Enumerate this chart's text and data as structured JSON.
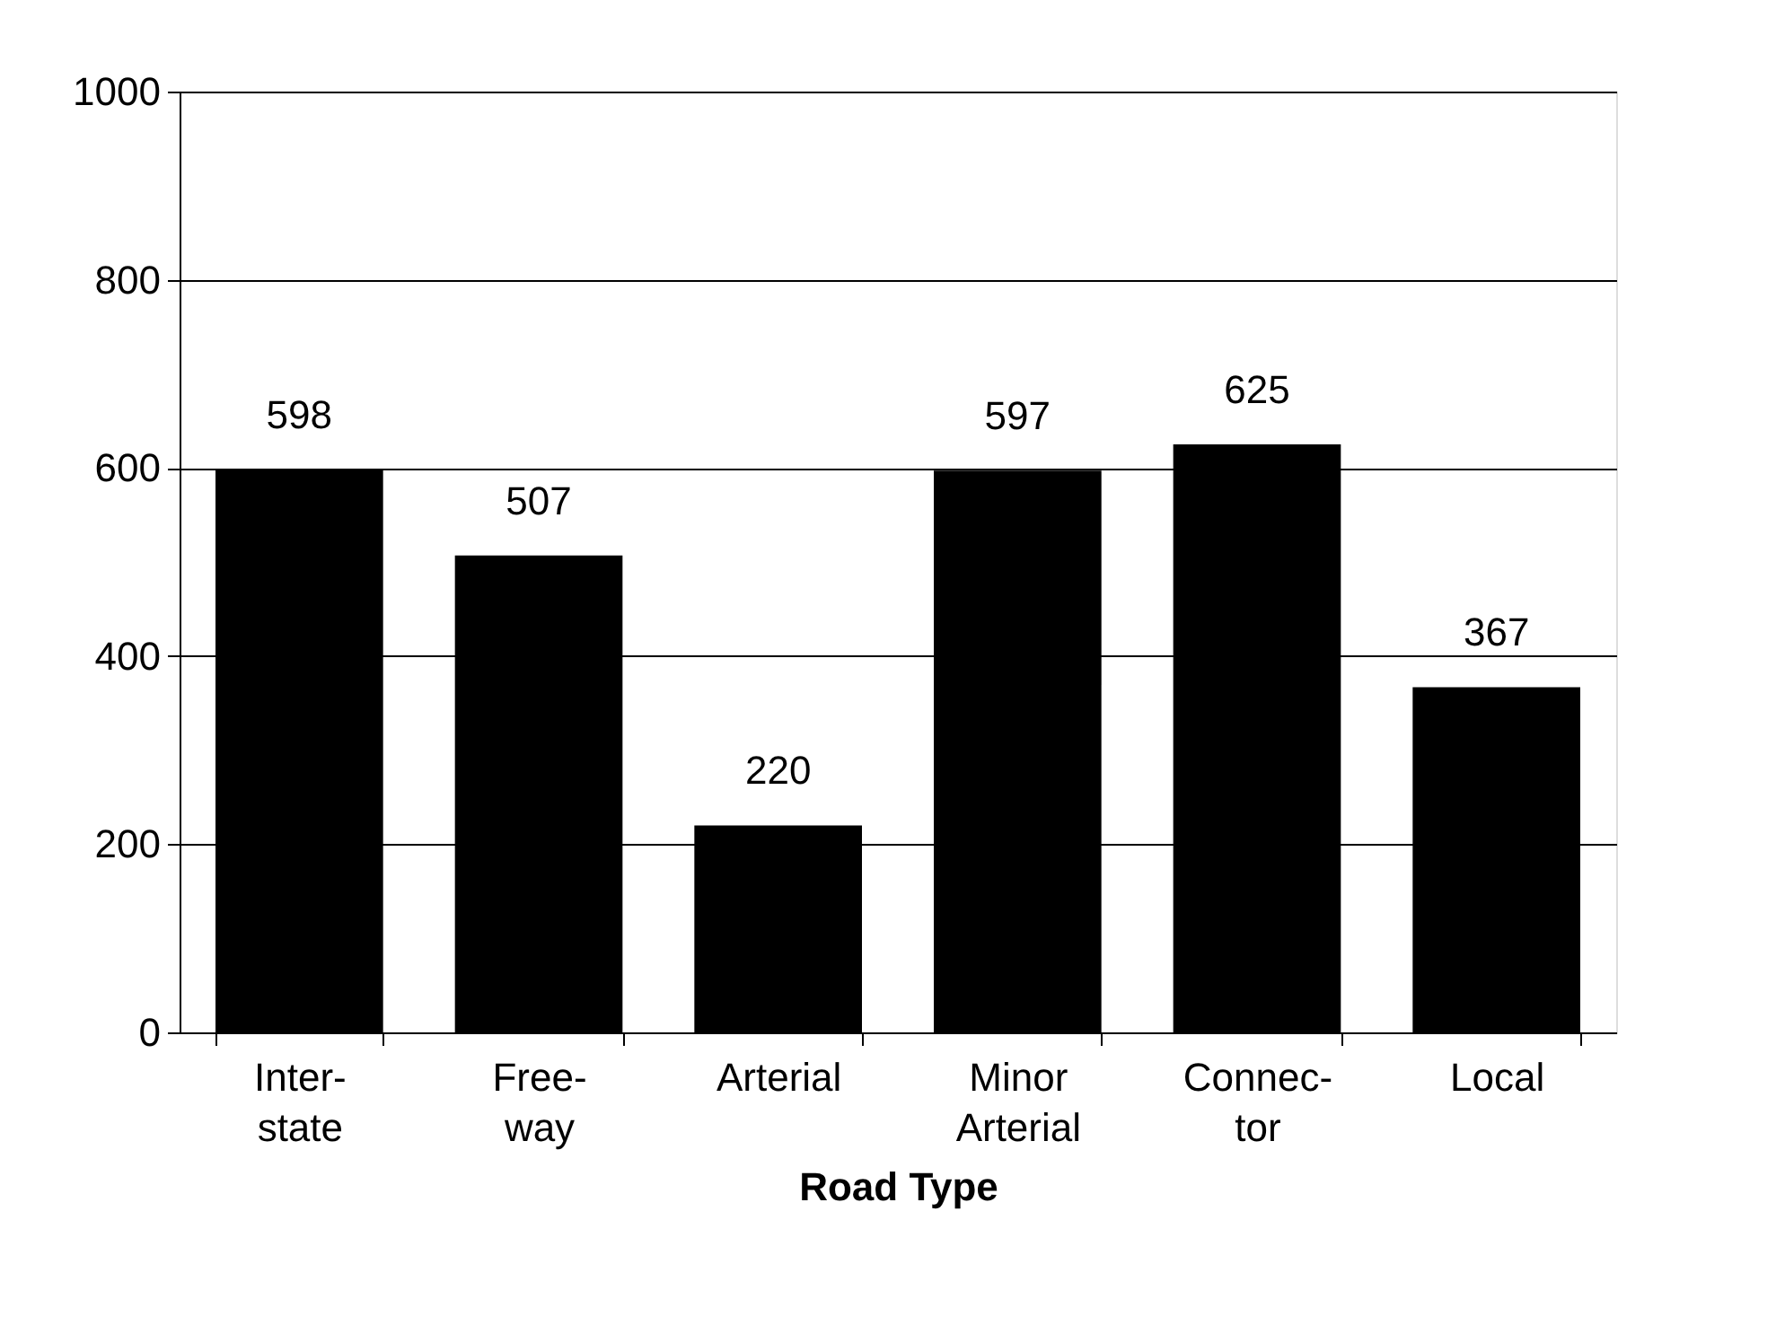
{
  "chart_data": {
    "type": "bar",
    "categories": [
      "Inter-\nstate",
      "Free-\nway",
      "Arterial",
      "Minor\nArterial",
      "Connec-\ntor",
      "Local"
    ],
    "values": [
      598,
      507,
      220,
      597,
      625,
      367
    ],
    "color": "#000000",
    "xlabel": "Road Type",
    "ylim": [
      0,
      1000
    ],
    "yticks": [
      0,
      200,
      400,
      600,
      800,
      1000
    ],
    "grid": "y",
    "data_labels": true
  }
}
